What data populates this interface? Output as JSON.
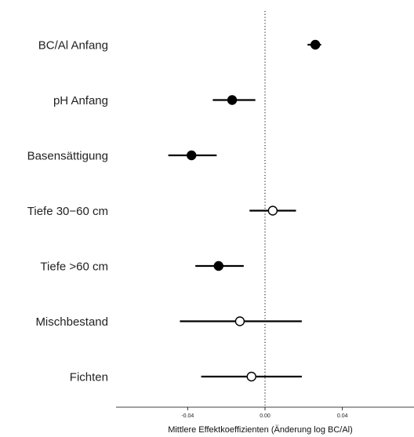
{
  "chart_data": {
    "type": "forest",
    "xlabel": "Mittlere Effektkoeffizienten (Änderung log BC/Al)",
    "xlim": [
      -0.077,
      0.077
    ],
    "xticks": [
      -0.04,
      0.0,
      0.04
    ],
    "xtick_labels": [
      "-0.04",
      "0.00",
      "0.04"
    ],
    "reference_line": 0.0,
    "items": [
      {
        "label": "BC/Al Anfang",
        "estimate": 0.026,
        "lower": 0.022,
        "upper": 0.029,
        "significant": true
      },
      {
        "label": "pH Anfang",
        "estimate": -0.017,
        "lower": -0.027,
        "upper": -0.005,
        "significant": true
      },
      {
        "label": "Basensättigung",
        "estimate": -0.038,
        "lower": -0.05,
        "upper": -0.025,
        "significant": true
      },
      {
        "label": "Tiefe 30−60 cm",
        "estimate": 0.004,
        "lower": -0.008,
        "upper": 0.016,
        "significant": false
      },
      {
        "label": "Tiefe >60 cm",
        "estimate": -0.024,
        "lower": -0.036,
        "upper": -0.011,
        "significant": true
      },
      {
        "label": "Mischbestand",
        "estimate": -0.013,
        "lower": -0.044,
        "upper": 0.019,
        "significant": false
      },
      {
        "label": "Fichten",
        "estimate": -0.007,
        "lower": -0.033,
        "upper": 0.019,
        "significant": false
      }
    ]
  }
}
